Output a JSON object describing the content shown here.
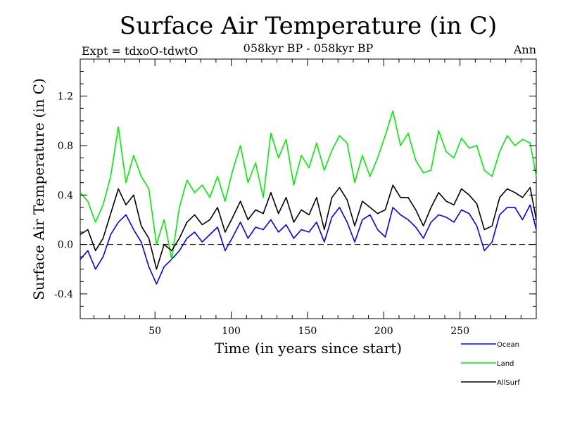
{
  "chart_data": {
    "type": "line",
    "title": "Surface Air Temperature (in C)",
    "subtitle_left": "Expt = tdxoO-tdwtO",
    "subtitle_center": "058kyr BP - 058kyr BP",
    "subtitle_right": "Ann",
    "xlabel": "Time (in years since start)",
    "ylabel": "Surface Air Temperature (in C)",
    "xlim": [
      1,
      300
    ],
    "ylim": [
      -0.6,
      1.5
    ],
    "xticks": [
      "50",
      "100",
      "150",
      "200",
      "250"
    ],
    "yticks": [
      "-0.4",
      "0.0",
      "0.4",
      "0.8",
      "1.2"
    ],
    "zero_line": "dashed",
    "grid": false,
    "legend_position": "bottom-right, outside plot",
    "x": [
      1,
      6,
      11,
      16,
      21,
      26,
      31,
      36,
      41,
      46,
      51,
      56,
      61,
      66,
      71,
      76,
      81,
      86,
      91,
      96,
      101,
      106,
      111,
      116,
      121,
      126,
      131,
      136,
      141,
      146,
      151,
      156,
      161,
      166,
      171,
      176,
      181,
      186,
      191,
      196,
      201,
      206,
      211,
      216,
      221,
      226,
      231,
      236,
      241,
      246,
      251,
      256,
      261,
      266,
      271,
      276,
      281,
      286,
      291,
      296,
      300
    ],
    "series": [
      {
        "name": "Ocean",
        "color": "#0000ff",
        "values": [
          -0.12,
          -0.05,
          -0.2,
          -0.1,
          0.08,
          0.18,
          0.24,
          0.12,
          0.02,
          -0.18,
          -0.32,
          -0.18,
          -0.12,
          -0.05,
          0.05,
          0.1,
          0.02,
          0.08,
          0.14,
          -0.05,
          0.06,
          0.18,
          0.05,
          0.14,
          0.12,
          0.2,
          0.1,
          0.16,
          0.05,
          0.12,
          0.1,
          0.18,
          0.02,
          0.22,
          0.3,
          0.18,
          0.02,
          0.2,
          0.24,
          0.12,
          0.06,
          0.3,
          0.24,
          0.2,
          0.14,
          0.05,
          0.18,
          0.24,
          0.22,
          0.18,
          0.28,
          0.25,
          0.15,
          -0.05,
          0.02,
          0.24,
          0.3,
          0.3,
          0.2,
          0.32,
          0.12
        ]
      },
      {
        "name": "Land",
        "color": "#00ee00",
        "values": [
          0.42,
          0.35,
          0.18,
          0.32,
          0.55,
          0.95,
          0.5,
          0.72,
          0.55,
          0.45,
          0.0,
          0.2,
          -0.12,
          0.3,
          0.52,
          0.42,
          0.48,
          0.38,
          0.55,
          0.35,
          0.6,
          0.8,
          0.5,
          0.66,
          0.38,
          0.9,
          0.7,
          0.85,
          0.48,
          0.72,
          0.62,
          0.82,
          0.6,
          0.76,
          0.88,
          0.82,
          0.5,
          0.72,
          0.55,
          0.7,
          0.88,
          1.08,
          0.8,
          0.9,
          0.68,
          0.58,
          0.6,
          0.92,
          0.75,
          0.7,
          0.86,
          0.78,
          0.8,
          0.6,
          0.55,
          0.75,
          0.88,
          0.8,
          0.85,
          0.82,
          0.55
        ]
      },
      {
        "name": "AllSurf",
        "color": "#000000",
        "values": [
          0.08,
          0.12,
          -0.05,
          0.05,
          0.25,
          0.45,
          0.32,
          0.4,
          0.15,
          0.05,
          -0.2,
          0.0,
          -0.05,
          0.05,
          0.18,
          0.24,
          0.16,
          0.2,
          0.3,
          0.1,
          0.22,
          0.35,
          0.2,
          0.28,
          0.25,
          0.42,
          0.25,
          0.38,
          0.18,
          0.28,
          0.24,
          0.38,
          0.12,
          0.38,
          0.46,
          0.36,
          0.15,
          0.35,
          0.3,
          0.25,
          0.28,
          0.48,
          0.38,
          0.38,
          0.28,
          0.15,
          0.3,
          0.42,
          0.35,
          0.32,
          0.45,
          0.4,
          0.33,
          0.12,
          0.15,
          0.38,
          0.45,
          0.42,
          0.38,
          0.46,
          0.2
        ]
      }
    ]
  }
}
